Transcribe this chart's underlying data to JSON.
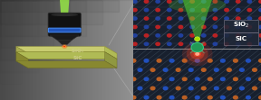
{
  "figsize": [
    2.88,
    1.11
  ],
  "dpi": 100,
  "left_bg_left": "#555555",
  "left_bg_right": "#909090",
  "obj_body_color": "#111111",
  "obj_taper_color": "#1a1a1a",
  "obj_ring_color": "#2255bb",
  "obj_ring_edge": "#4488ee",
  "laser_beam_color": "#99ee44",
  "laser_cone_color": "#55cc22",
  "sample_sio2_top": "#c8cc70",
  "sample_sio2_side": "#b0bb55",
  "sample_sio2_front": "#a8ab50",
  "sample_sic_top": "#b0bb55",
  "sample_sic_side": "#909840",
  "sample_sic_front": "#888830",
  "sio2_label": "SiO₂",
  "sic_label": "SiC",
  "label_color": "#cccc88",
  "emission_color": "#ff4400",
  "connector_color": "#aaaaaa",
  "right_bg": "#18202e",
  "rp_sio2_label": "SiO₂",
  "rp_sic_label": "SiC",
  "rp_label_color": "#ffffff",
  "rp_si_color": "#2244aa",
  "rp_o_color": "#cc2222",
  "rp_sic_si_color": "#2255cc",
  "rp_sic_c_color": "#cc6622",
  "rp_bond_color": "#556688",
  "rp_bond_sic_color": "#445566",
  "rp_laser_color": "#55dd33",
  "rp_center_color": "#229955",
  "rp_emit_color": "#ff4422",
  "rp_interface_color": "#aaaaaa",
  "rp_label_box_color": "#202838"
}
